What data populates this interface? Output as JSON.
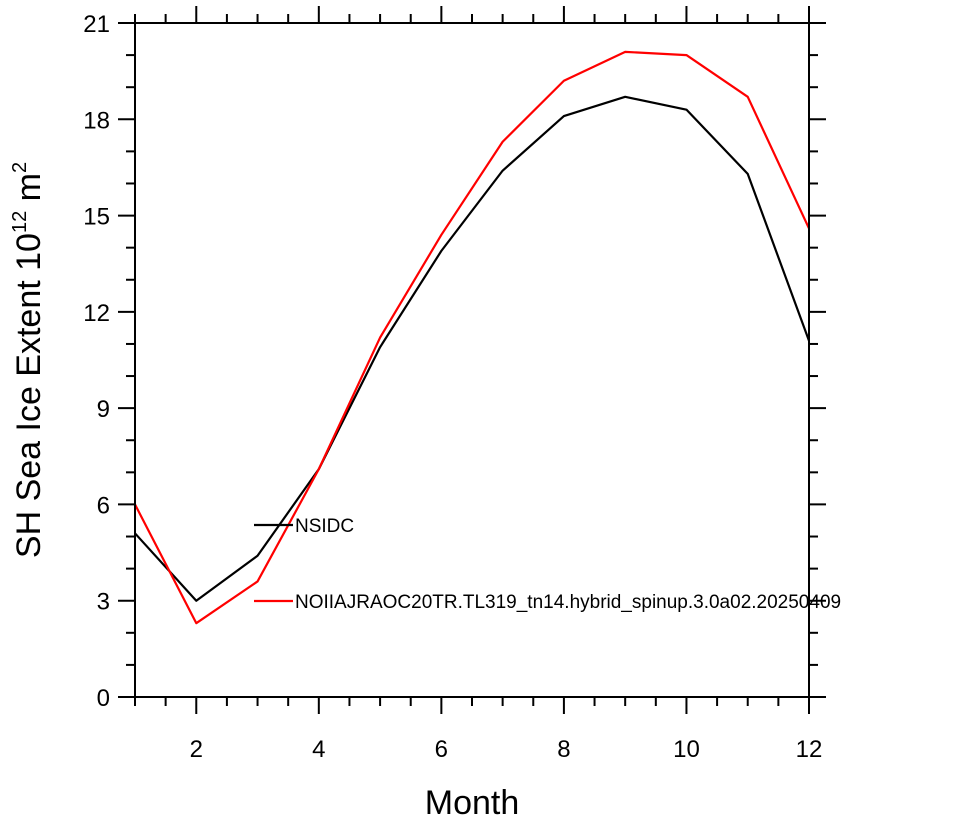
{
  "chart_data": {
    "type": "line",
    "title": "",
    "xlabel": "Month",
    "ylabel_main": "SH Sea Ice Extent 10",
    "ylabel_sup1": "12",
    "ylabel_unit": " m",
    "ylabel_sup2": "2",
    "xlim": [
      1,
      12
    ],
    "ylim": [
      0,
      21
    ],
    "x_ticks": [
      2,
      4,
      6,
      8,
      10,
      12
    ],
    "x_tick_labels": [
      "2",
      "4",
      "6",
      "8",
      "10",
      "12"
    ],
    "y_ticks": [
      0,
      3,
      6,
      9,
      12,
      15,
      18,
      21
    ],
    "y_tick_labels": [
      "0",
      "3",
      "6",
      "9",
      "12",
      "15",
      "18",
      "21"
    ],
    "x": [
      1,
      2,
      3,
      4,
      5,
      6,
      7,
      8,
      9,
      10,
      11,
      12
    ],
    "series": [
      {
        "name": "NSIDC",
        "color": "#000000",
        "values": [
          5.1,
          3.0,
          4.4,
          7.1,
          10.9,
          13.9,
          16.4,
          18.1,
          18.7,
          18.3,
          16.3,
          11.1
        ]
      },
      {
        "name": "NOIIAJRAOC20TR.TL319_tn14.hybrid_spinup.3.0a02.20250409",
        "color": "#ff0000",
        "values": [
          6.0,
          2.3,
          3.6,
          7.1,
          11.2,
          14.4,
          17.3,
          19.2,
          20.1,
          20.0,
          18.7,
          14.6
        ]
      }
    ],
    "legend_placement": "inside-lower-left",
    "grid": false
  }
}
